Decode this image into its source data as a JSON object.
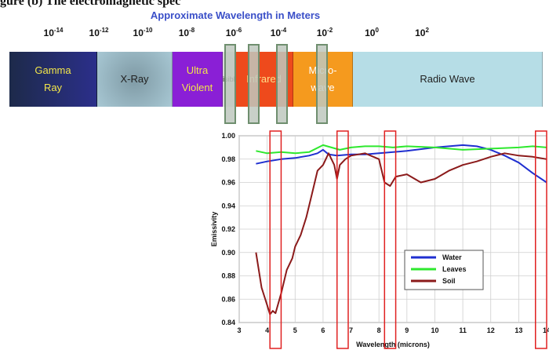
{
  "caption": "gure (b) The electromagnetic spectrum",
  "spectrum": {
    "title": "Approximate Wavelength in Meters",
    "ticks": [
      {
        "base": "10",
        "exp": "-14"
      },
      {
        "base": "10",
        "exp": "-12"
      },
      {
        "base": "10",
        "exp": "-10"
      },
      {
        "base": "10",
        "exp": "-8"
      },
      {
        "base": "10",
        "exp": "-6"
      },
      {
        "base": "10",
        "exp": "-4"
      },
      {
        "base": "10",
        "exp": "-2"
      },
      {
        "base": "10",
        "exp": "0"
      },
      {
        "base": "10",
        "exp": "2"
      }
    ],
    "bands": [
      {
        "line1": "Gamma",
        "line2": "Ray",
        "color": "#2b2f8a",
        "text_color": "#f2e64a"
      },
      {
        "line1": "X-Ray",
        "line2": "",
        "color": "#a8c8d4",
        "text_color": "#222222"
      },
      {
        "line1": "Ultra",
        "line2": "Violent",
        "color": "#8a1fd6",
        "text_color": "#f2e64a"
      },
      {
        "line1": "Visible",
        "line2": "",
        "color": "#d9d9d9",
        "text_color": "#222222"
      },
      {
        "line1": "Infrared",
        "line2": "",
        "color": "#ee4a1c",
        "text_color": "#ffe08a"
      },
      {
        "line1": "Micro-",
        "line2": "wave",
        "color": "#f59a1e",
        "text_color": "#ffffff"
      },
      {
        "line1": "Radio Wave",
        "line2": "",
        "color": "#b6dde6",
        "text_color": "#222222"
      }
    ]
  },
  "chart_data": {
    "type": "line",
    "xlabel": "Wavelength (microns)",
    "ylabel": "Emissivity",
    "xlim": [
      3,
      14
    ],
    "ylim": [
      0.84,
      1.0
    ],
    "x_ticks": [
      "3",
      "4",
      "5",
      "6",
      "7",
      "8",
      "9",
      "10",
      "11",
      "12",
      "13",
      "14"
    ],
    "y_ticks": [
      "0.84",
      "0.86",
      "0.88",
      "0.90",
      "0.92",
      "0.94",
      "0.96",
      "0.98",
      "1.00"
    ],
    "grid": true,
    "legend_position": "lower-right",
    "highlight_windows": [
      [
        4.1,
        4.5
      ],
      [
        6.5,
        6.9
      ],
      [
        8.2,
        8.6
      ],
      [
        13.6,
        14.0
      ]
    ],
    "series": [
      {
        "name": "Water",
        "color": "#1f2fd0",
        "x": [
          3.6,
          4.0,
          4.5,
          5.0,
          5.5,
          5.8,
          6.0,
          6.2,
          6.5,
          7.0,
          7.5,
          8.0,
          9.0,
          10.0,
          11.0,
          11.5,
          12.0,
          12.5,
          13.0,
          13.5,
          14.0
        ],
        "y": [
          0.976,
          0.978,
          0.98,
          0.981,
          0.983,
          0.985,
          0.988,
          0.984,
          0.983,
          0.984,
          0.984,
          0.985,
          0.987,
          0.99,
          0.992,
          0.991,
          0.988,
          0.983,
          0.977,
          0.968,
          0.96
        ]
      },
      {
        "name": "Leaves",
        "color": "#2ee82e",
        "x": [
          3.6,
          4.0,
          4.5,
          5.0,
          5.5,
          6.0,
          6.3,
          6.6,
          7.0,
          7.5,
          8.0,
          8.5,
          9.0,
          10.0,
          11.0,
          12.0,
          13.0,
          13.5,
          14.0
        ],
        "y": [
          0.987,
          0.985,
          0.986,
          0.985,
          0.986,
          0.992,
          0.99,
          0.988,
          0.99,
          0.991,
          0.991,
          0.99,
          0.991,
          0.99,
          0.988,
          0.989,
          0.99,
          0.991,
          0.99
        ]
      },
      {
        "name": "Soil",
        "color": "#8b1a1a",
        "x": [
          3.6,
          3.8,
          4.0,
          4.1,
          4.2,
          4.3,
          4.5,
          4.7,
          4.9,
          5.0,
          5.2,
          5.4,
          5.6,
          5.8,
          6.0,
          6.2,
          6.4,
          6.5,
          6.6,
          6.8,
          7.0,
          7.5,
          8.0,
          8.2,
          8.4,
          8.6,
          9.0,
          9.5,
          10.0,
          10.5,
          11.0,
          11.5,
          12.0,
          12.5,
          13.0,
          13.5,
          14.0
        ],
        "y": [
          0.9,
          0.87,
          0.855,
          0.847,
          0.85,
          0.848,
          0.865,
          0.885,
          0.895,
          0.905,
          0.915,
          0.93,
          0.95,
          0.97,
          0.975,
          0.985,
          0.975,
          0.963,
          0.975,
          0.98,
          0.983,
          0.985,
          0.98,
          0.96,
          0.957,
          0.965,
          0.967,
          0.96,
          0.963,
          0.97,
          0.975,
          0.978,
          0.982,
          0.985,
          0.983,
          0.982,
          0.98
        ]
      }
    ]
  }
}
